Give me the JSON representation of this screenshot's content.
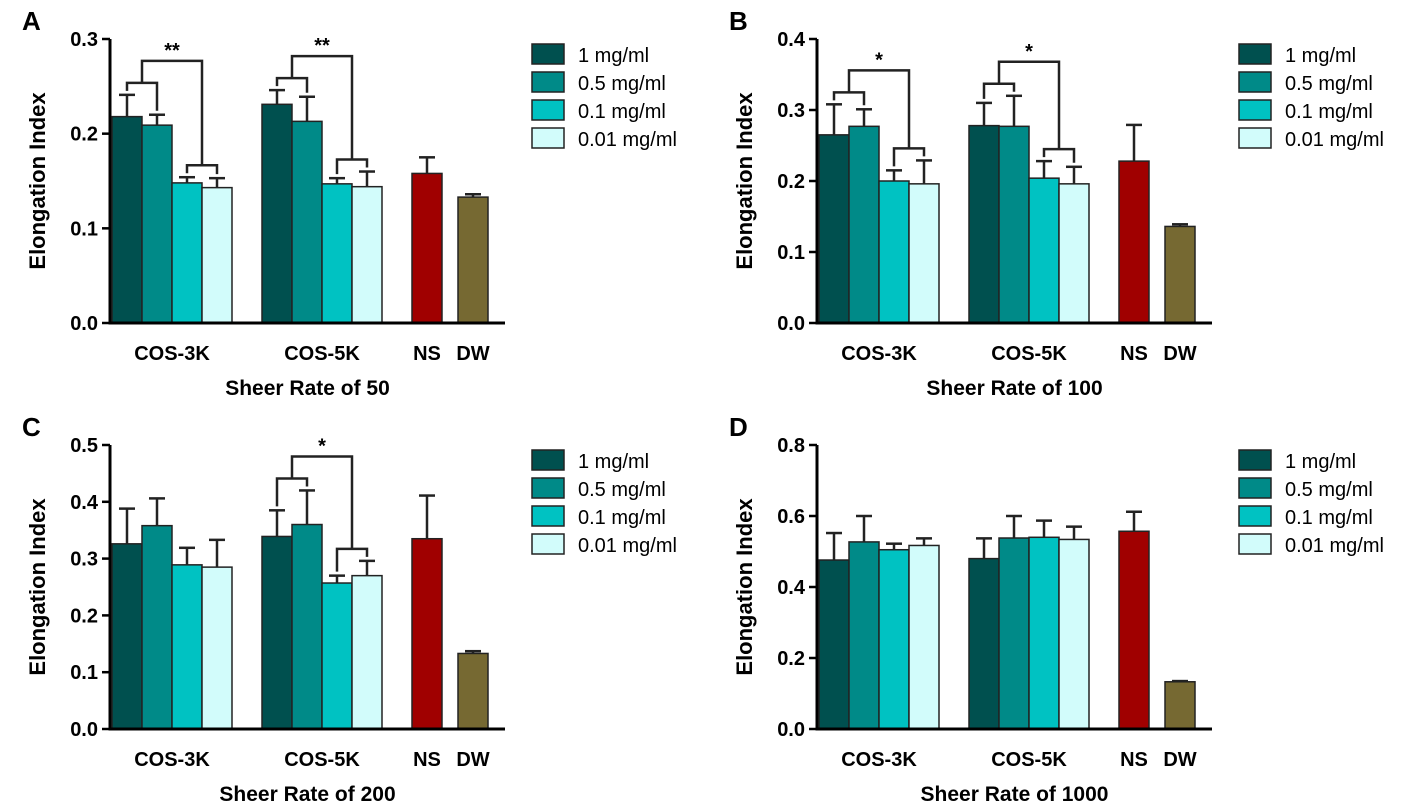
{
  "chart_data": [
    {
      "type": "bar",
      "panel_label": "A",
      "xlabel": "Sheer Rate of 50",
      "ylabel": "Elongation Index",
      "ylim": [
        0,
        0.3
      ],
      "yticks": [
        "0.0",
        "0.1",
        "0.2",
        "0.3"
      ],
      "ytick_values": [
        0,
        0.1,
        0.2,
        0.3
      ],
      "groups": [
        {
          "name": "COS-3K",
          "values": [
            0.218,
            0.209,
            0.148,
            0.143
          ],
          "errors": [
            0.023,
            0.011,
            0.006,
            0.01
          ]
        },
        {
          "name": "COS-5K",
          "values": [
            0.231,
            0.213,
            0.147,
            0.144
          ],
          "errors": [
            0.015,
            0.026,
            0.006,
            0.016
          ]
        },
        {
          "name": "NS",
          "values": [
            0.158
          ],
          "errors": [
            0.017
          ]
        },
        {
          "name": "DW",
          "values": [
            0.133
          ],
          "errors": [
            0.003
          ]
        }
      ],
      "significance": [
        {
          "group": "COS-3K",
          "label": "**"
        },
        {
          "group": "COS-5K",
          "label": "**"
        }
      ]
    },
    {
      "type": "bar",
      "panel_label": "B",
      "xlabel": "Sheer Rate of 100",
      "ylabel": "Elongation Index",
      "ylim": [
        0,
        0.4
      ],
      "yticks": [
        "0.0",
        "0.1",
        "0.2",
        "0.3",
        "0.4"
      ],
      "ytick_values": [
        0,
        0.1,
        0.2,
        0.3,
        0.4
      ],
      "groups": [
        {
          "name": "COS-3K",
          "values": [
            0.265,
            0.277,
            0.2,
            0.196
          ],
          "errors": [
            0.043,
            0.024,
            0.015,
            0.033
          ]
        },
        {
          "name": "COS-5K",
          "values": [
            0.278,
            0.277,
            0.204,
            0.196
          ],
          "errors": [
            0.032,
            0.043,
            0.024,
            0.024
          ]
        },
        {
          "name": "NS",
          "values": [
            0.228
          ],
          "errors": [
            0.051
          ]
        },
        {
          "name": "DW",
          "values": [
            0.136
          ],
          "errors": [
            0.003
          ]
        }
      ],
      "significance": [
        {
          "group": "COS-3K",
          "label": "*"
        },
        {
          "group": "COS-5K",
          "label": "*"
        }
      ]
    },
    {
      "type": "bar",
      "panel_label": "C",
      "xlabel": "Sheer Rate of 200",
      "ylabel": "Elongation Index",
      "ylim": [
        0,
        0.5
      ],
      "yticks": [
        "0.0",
        "0.1",
        "0.2",
        "0.3",
        "0.4",
        "0.5"
      ],
      "ytick_values": [
        0,
        0.1,
        0.2,
        0.3,
        0.4,
        0.5
      ],
      "groups": [
        {
          "name": "COS-3K",
          "values": [
            0.326,
            0.358,
            0.289,
            0.285
          ],
          "errors": [
            0.062,
            0.048,
            0.03,
            0.048
          ]
        },
        {
          "name": "COS-5K",
          "values": [
            0.339,
            0.36,
            0.257,
            0.27
          ],
          "errors": [
            0.046,
            0.06,
            0.013,
            0.026
          ]
        },
        {
          "name": "NS",
          "values": [
            0.335
          ],
          "errors": [
            0.076
          ]
        },
        {
          "name": "DW",
          "values": [
            0.133
          ],
          "errors": [
            0.004
          ]
        }
      ],
      "significance": [
        {
          "group": "COS-5K",
          "label": "*"
        }
      ]
    },
    {
      "type": "bar",
      "panel_label": "D",
      "xlabel": "Sheer Rate of 1000",
      "ylabel": "Elongation Index",
      "ylim": [
        0,
        0.8
      ],
      "yticks": [
        "0.0",
        "0.2",
        "0.4",
        "0.6",
        "0.8"
      ],
      "ytick_values": [
        0,
        0.2,
        0.4,
        0.6,
        0.8
      ],
      "groups": [
        {
          "name": "COS-3K",
          "values": [
            0.476,
            0.527,
            0.505,
            0.517
          ],
          "errors": [
            0.076,
            0.073,
            0.017,
            0.02
          ]
        },
        {
          "name": "COS-5K",
          "values": [
            0.48,
            0.538,
            0.54,
            0.534
          ],
          "errors": [
            0.057,
            0.062,
            0.047,
            0.036
          ]
        },
        {
          "name": "NS",
          "values": [
            0.557
          ],
          "errors": [
            0.055
          ]
        },
        {
          "name": "DW",
          "values": [
            0.133
          ],
          "errors": [
            0.002
          ]
        }
      ],
      "significance": []
    }
  ],
  "legend": [
    "1 mg/ml",
    "0.5 mg/ml",
    "0.1 mg/ml",
    "0.01 mg/ml"
  ],
  "colors": {
    "concentrations": [
      "#00504f",
      "#008a88",
      "#00c2c2",
      "#d2fcfb"
    ],
    "NS": "#a00000",
    "DW": "#766932"
  }
}
